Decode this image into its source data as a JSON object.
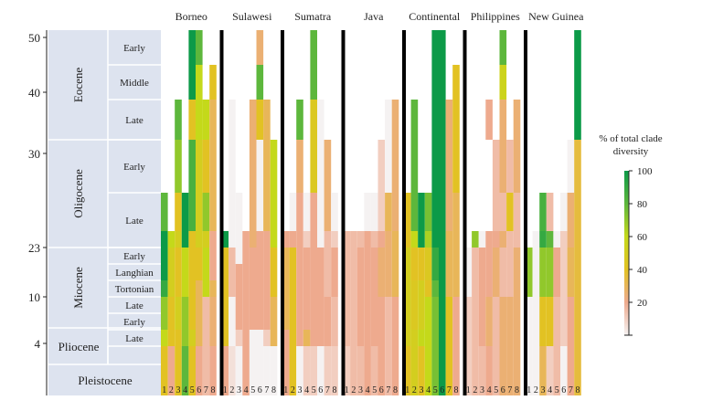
{
  "chart_data": {
    "type": "heatmap",
    "title": "",
    "regions": [
      "Borneo",
      "Sulawesi",
      "Sumatra",
      "Java",
      "Continental",
      "Philippines",
      "New Guinea"
    ],
    "clades": [
      "1",
      "2",
      "3",
      "4",
      "5",
      "6",
      "7",
      "8"
    ],
    "y_ticks": [
      50,
      40,
      30,
      23,
      10,
      4
    ],
    "epochs": [
      "Eocene",
      "Oligocene",
      "Miocene",
      "Pliocene",
      "Pleistocene"
    ],
    "stages": [
      "Early",
      "Middle",
      "Late",
      "Early",
      "Late",
      "Early",
      "Langhian",
      "Tortonian",
      "Late",
      "Early",
      "Late"
    ],
    "time_bins": [
      "Eocene Early",
      "Eocene Middle",
      "Eocene Late",
      "Oligocene Early",
      "Oligocene Late",
      "Miocene Early",
      "Langhian",
      "Tortonian",
      "Miocene Late",
      "Pliocene Early",
      "Pliocene Late",
      "Pleistocene"
    ],
    "colorbar": {
      "label_line1": "% of total clade",
      "label_line2": "diversity",
      "ticks": [
        "100",
        "80",
        "60",
        "40",
        "20"
      ],
      "range": [
        0,
        100
      ],
      "colors": {
        "0": "#f5f2f2",
        "20": "#eeaa8e",
        "40": "#e2c223",
        "60": "#c4d91a",
        "80": "#5db73c",
        "100": "#0c9a48"
      }
    },
    "values": [
      [
        [
          null,
          null,
          null,
          null,
          100,
          80,
          null,
          null
        ],
        [
          null,
          null,
          null,
          null,
          100,
          60,
          null,
          40
        ],
        [
          null,
          null,
          80,
          null,
          40,
          60,
          60,
          30
        ],
        [
          null,
          null,
          70,
          null,
          85,
          50,
          40,
          30
        ],
        [
          80,
          null,
          40,
          100,
          85,
          50,
          70,
          30
        ],
        [
          100,
          60,
          50,
          100,
          40,
          50,
          50,
          20
        ],
        [
          100,
          50,
          40,
          60,
          40,
          40,
          60,
          20
        ],
        [
          100,
          50,
          40,
          60,
          40,
          40,
          60,
          20
        ],
        [
          90,
          50,
          40,
          60,
          40,
          30,
          60,
          30
        ],
        [
          70,
          40,
          50,
          70,
          40,
          30,
          15,
          25
        ],
        [
          60,
          40,
          40,
          70,
          50,
          30,
          15,
          25
        ],
        [
          40,
          20,
          40,
          80,
          40,
          20,
          15,
          20
        ]
      ],
      [
        [
          null,
          null,
          null,
          null,
          null,
          25,
          null,
          null
        ],
        [
          null,
          null,
          null,
          null,
          null,
          80,
          null,
          null
        ],
        [
          null,
          0,
          null,
          null,
          25,
          40,
          30,
          null
        ],
        [
          null,
          0,
          null,
          null,
          25,
          0,
          30,
          60
        ],
        [
          null,
          0,
          0,
          null,
          25,
          0,
          30,
          60
        ],
        [
          100,
          0,
          0,
          20,
          25,
          20,
          20,
          60
        ],
        [
          40,
          15,
          0,
          20,
          20,
          20,
          20,
          40
        ],
        [
          40,
          15,
          20,
          20,
          20,
          20,
          20,
          40
        ],
        [
          40,
          15,
          20,
          20,
          20,
          20,
          20,
          40
        ],
        [
          40,
          0,
          20,
          20,
          20,
          20,
          20,
          30
        ],
        [
          40,
          0,
          10,
          20,
          0,
          0,
          10,
          30
        ],
        [
          20,
          5,
          0,
          20,
          0,
          0,
          0,
          0
        ]
      ],
      [
        [
          null,
          null,
          null,
          null,
          80,
          null,
          null,
          null
        ],
        [
          null,
          null,
          null,
          null,
          80,
          null,
          null,
          null
        ],
        [
          null,
          null,
          80,
          null,
          45,
          0,
          null,
          null
        ],
        [
          null,
          null,
          25,
          null,
          45,
          0,
          25,
          null
        ],
        [
          null,
          0,
          20,
          0,
          20,
          0,
          25,
          0
        ],
        [
          20,
          20,
          20,
          10,
          20,
          0,
          15,
          10
        ],
        [
          30,
          40,
          20,
          20,
          20,
          20,
          15,
          20
        ],
        [
          30,
          40,
          20,
          20,
          20,
          20,
          15,
          20
        ],
        [
          30,
          40,
          20,
          20,
          20,
          20,
          15,
          20
        ],
        [
          30,
          40,
          20,
          20,
          20,
          20,
          20,
          15
        ],
        [
          20,
          40,
          20,
          30,
          20,
          20,
          20,
          15
        ],
        [
          20,
          40,
          0,
          10,
          10,
          0,
          10,
          10
        ]
      ],
      [
        [
          null,
          null,
          null,
          null,
          null,
          null,
          null,
          null
        ],
        [
          null,
          null,
          null,
          null,
          null,
          null,
          null,
          null
        ],
        [
          null,
          null,
          null,
          null,
          null,
          null,
          0,
          25
        ],
        [
          null,
          null,
          null,
          null,
          null,
          10,
          0,
          25
        ],
        [
          null,
          null,
          null,
          0,
          0,
          10,
          30,
          25
        ],
        [
          15,
          15,
          15,
          20,
          15,
          20,
          25,
          30
        ],
        [
          15,
          15,
          20,
          20,
          20,
          25,
          25,
          30
        ],
        [
          15,
          15,
          20,
          20,
          20,
          25,
          25,
          30
        ],
        [
          15,
          15,
          20,
          20,
          20,
          25,
          25,
          30
        ],
        [
          15,
          15,
          20,
          20,
          20,
          20,
          15,
          20
        ],
        [
          15,
          15,
          20,
          20,
          20,
          20,
          15,
          20
        ],
        [
          10,
          15,
          15,
          20,
          15,
          20,
          15,
          20
        ]
      ],
      [
        [
          null,
          null,
          null,
          null,
          100,
          100,
          null,
          null
        ],
        [
          null,
          null,
          null,
          null,
          100,
          100,
          null,
          40
        ],
        [
          null,
          80,
          null,
          null,
          100,
          100,
          25,
          40
        ],
        [
          null,
          80,
          null,
          null,
          100,
          100,
          25,
          40
        ],
        [
          40,
          80,
          100,
          75,
          100,
          100,
          25,
          30
        ],
        [
          40,
          60,
          100,
          65,
          100,
          100,
          30,
          30
        ],
        [
          50,
          40,
          40,
          45,
          90,
          100,
          30,
          30
        ],
        [
          50,
          40,
          40,
          45,
          90,
          100,
          30,
          30
        ],
        [
          50,
          45,
          50,
          40,
          80,
          100,
          30,
          30
        ],
        [
          50,
          45,
          50,
          60,
          75,
          100,
          40,
          20
        ],
        [
          50,
          50,
          60,
          60,
          75,
          100,
          40,
          20
        ],
        [
          40,
          50,
          40,
          60,
          75,
          100,
          40,
          20
        ]
      ],
      [
        [
          null,
          null,
          null,
          null,
          null,
          80,
          null,
          null
        ],
        [
          null,
          null,
          null,
          null,
          null,
          55,
          null,
          null
        ],
        [
          null,
          null,
          null,
          20,
          null,
          25,
          null,
          25
        ],
        [
          null,
          null,
          null,
          null,
          15,
          25,
          15,
          25
        ],
        [
          null,
          null,
          null,
          null,
          15,
          15,
          40,
          15
        ],
        [
          null,
          70,
          0,
          20,
          20,
          25,
          15,
          15
        ],
        [
          0,
          15,
          20,
          20,
          25,
          15,
          15,
          25
        ],
        [
          0,
          15,
          20,
          20,
          25,
          15,
          15,
          25
        ],
        [
          0,
          15,
          20,
          20,
          25,
          15,
          15,
          25
        ],
        [
          10,
          15,
          20,
          25,
          15,
          25,
          25,
          25
        ],
        [
          10,
          15,
          20,
          25,
          15,
          25,
          25,
          25
        ],
        [
          10,
          15,
          15,
          20,
          15,
          25,
          25,
          25
        ]
      ],
      [
        [
          null,
          null,
          null,
          null,
          null,
          null,
          null,
          100
        ],
        [
          null,
          null,
          null,
          null,
          null,
          null,
          null,
          100
        ],
        [
          null,
          null,
          null,
          null,
          null,
          null,
          null,
          100
        ],
        [
          null,
          null,
          null,
          null,
          null,
          null,
          0,
          35
        ],
        [
          null,
          null,
          85,
          15,
          null,
          0,
          25,
          35
        ],
        [
          null,
          0,
          90,
          80,
          0,
          10,
          25,
          35
        ],
        [
          70,
          0,
          70,
          70,
          20,
          10,
          30,
          35
        ],
        [
          70,
          0,
          70,
          70,
          20,
          10,
          30,
          35
        ],
        [
          70,
          0,
          70,
          70,
          20,
          10,
          30,
          35
        ],
        [
          0,
          0,
          40,
          40,
          15,
          10,
          20,
          35
        ],
        [
          0,
          0,
          40,
          40,
          15,
          10,
          20,
          35
        ],
        [
          0,
          0,
          30,
          10,
          15,
          0,
          20,
          35
        ]
      ]
    ]
  }
}
